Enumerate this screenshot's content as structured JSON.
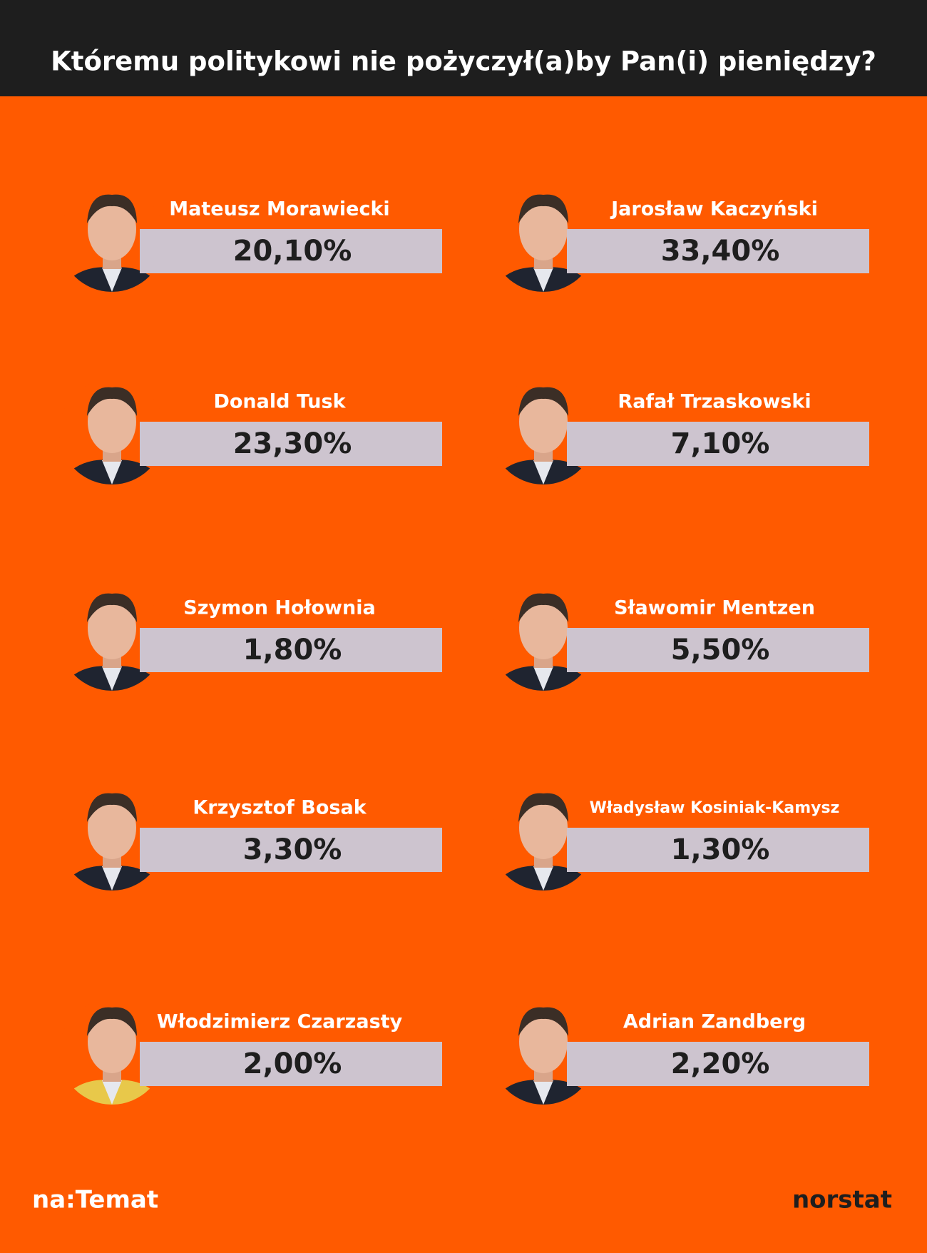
{
  "header": {
    "title": "Któremu politykowi nie pożyczył(a)by Pan(i) pieniędzy?"
  },
  "items": [
    {
      "name": "Mateusz Morawiecki",
      "value": "20,10%"
    },
    {
      "name": "Jarosław Kaczyński",
      "value": "33,40%"
    },
    {
      "name": "Donald Tusk",
      "value": "23,30%"
    },
    {
      "name": "Rafał Trzaskowski",
      "value": "7,10%"
    },
    {
      "name": "Szymon Hołownia",
      "value": "1,80%"
    },
    {
      "name": "Sławomir Mentzen",
      "value": "5,50%"
    },
    {
      "name": "Krzysztof Bosak",
      "value": "3,30%"
    },
    {
      "name": "Władysław Kosiniak-Kamysz",
      "value": "1,30%"
    },
    {
      "name": "Włodzimierz Czarzasty",
      "value": "2,00%"
    },
    {
      "name": "Adrian Zandberg",
      "value": "2,20%"
    }
  ],
  "footer": {
    "left_logo": "na:Temat",
    "right_logo": "norstat"
  }
}
